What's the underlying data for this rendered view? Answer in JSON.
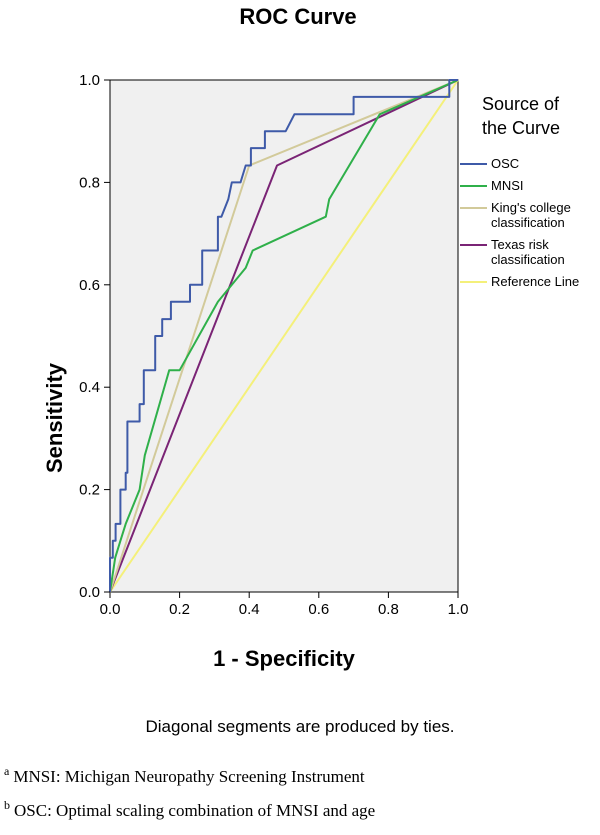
{
  "chart_data": {
    "type": "line",
    "title": "ROC Curve",
    "xlabel": "1 - Specificity",
    "ylabel": "Sensitivity",
    "xlim": [
      0,
      1
    ],
    "ylim": [
      0,
      1
    ],
    "xticks": [
      "0.0",
      "0.2",
      "0.4",
      "0.6",
      "0.8",
      "1.0"
    ],
    "yticks": [
      "0.0",
      "0.2",
      "0.4",
      "0.6",
      "0.8",
      "1.0"
    ],
    "grid": false,
    "legend_title_lines": [
      "Source of",
      "the Curve"
    ],
    "legend_position": "right",
    "note": "Diagonal segments are produced by ties.",
    "series": [
      {
        "name_lines": [
          "OSC"
        ],
        "color": "#3e5aa8",
        "points": [
          [
            0,
            0
          ],
          [
            0,
            0.067
          ],
          [
            0.008,
            0.067
          ],
          [
            0.008,
            0.1
          ],
          [
            0.016,
            0.1
          ],
          [
            0.016,
            0.133
          ],
          [
            0.03,
            0.133
          ],
          [
            0.03,
            0.2
          ],
          [
            0.045,
            0.2
          ],
          [
            0.045,
            0.233
          ],
          [
            0.05,
            0.233
          ],
          [
            0.05,
            0.333
          ],
          [
            0.085,
            0.333
          ],
          [
            0.085,
            0.367
          ],
          [
            0.097,
            0.367
          ],
          [
            0.097,
            0.433
          ],
          [
            0.13,
            0.433
          ],
          [
            0.13,
            0.5
          ],
          [
            0.15,
            0.5
          ],
          [
            0.15,
            0.533
          ],
          [
            0.175,
            0.533
          ],
          [
            0.175,
            0.567
          ],
          [
            0.23,
            0.567
          ],
          [
            0.23,
            0.6
          ],
          [
            0.265,
            0.6
          ],
          [
            0.265,
            0.667
          ],
          [
            0.31,
            0.667
          ],
          [
            0.31,
            0.733
          ],
          [
            0.32,
            0.733
          ],
          [
            0.34,
            0.767
          ],
          [
            0.35,
            0.8
          ],
          [
            0.375,
            0.8
          ],
          [
            0.39,
            0.833
          ],
          [
            0.405,
            0.833
          ],
          [
            0.405,
            0.867
          ],
          [
            0.445,
            0.867
          ],
          [
            0.445,
            0.9
          ],
          [
            0.505,
            0.9
          ],
          [
            0.53,
            0.933
          ],
          [
            0.7,
            0.933
          ],
          [
            0.7,
            0.967
          ],
          [
            0.975,
            0.967
          ],
          [
            0.975,
            1.0
          ],
          [
            1,
            1
          ]
        ]
      },
      {
        "name_lines": [
          "MNSI"
        ],
        "color": "#2fb04a",
        "points": [
          [
            0,
            0
          ],
          [
            0.015,
            0.067
          ],
          [
            0.03,
            0.1
          ],
          [
            0.045,
            0.133
          ],
          [
            0.085,
            0.2
          ],
          [
            0.1,
            0.267
          ],
          [
            0.17,
            0.433
          ],
          [
            0.2,
            0.433
          ],
          [
            0.31,
            0.567
          ],
          [
            0.39,
            0.633
          ],
          [
            0.41,
            0.667
          ],
          [
            0.62,
            0.733
          ],
          [
            0.63,
            0.767
          ],
          [
            0.775,
            0.933
          ],
          [
            1,
            1
          ]
        ]
      },
      {
        "name_lines": [
          "King's college",
          "classification"
        ],
        "color": "#d2ca9a",
        "points": [
          [
            0,
            0
          ],
          [
            0.4,
            0.833
          ],
          [
            1,
            1
          ]
        ]
      },
      {
        "name_lines": [
          "Texas risk",
          "classification"
        ],
        "color": "#7a2475",
        "points": [
          [
            0,
            0
          ],
          [
            0.48,
            0.833
          ],
          [
            1,
            1
          ]
        ]
      },
      {
        "name_lines": [
          "Reference Line"
        ],
        "color": "#f4f07a",
        "points": [
          [
            0,
            0
          ],
          [
            1,
            1
          ]
        ]
      }
    ]
  },
  "footnotes": [
    {
      "marker": "a",
      "text": "MNSI: Michigan Neuropathy Screening Instrument"
    },
    {
      "marker": "b",
      "text": "OSC: Optimal scaling combination of MNSI and age"
    }
  ]
}
